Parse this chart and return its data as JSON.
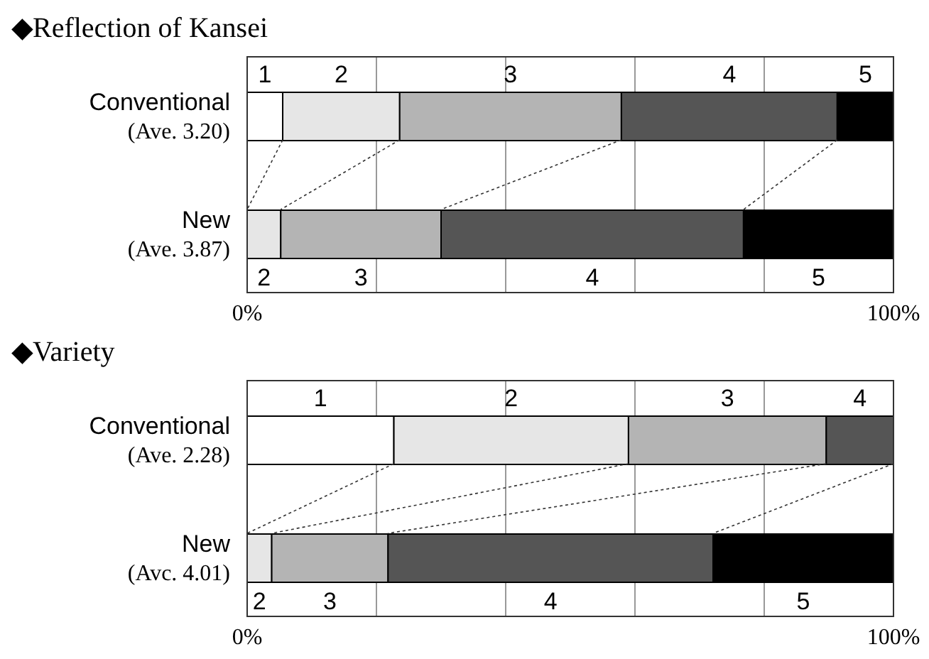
{
  "chart_data": [
    {
      "type": "bar",
      "orientation": "horizontal",
      "stacked": true,
      "title": "◆Reflection of Kansei",
      "categories": [
        "Conventional",
        "New"
      ],
      "annotations": [
        "(Ave.   3.20)",
        "(Ave.   3.87)"
      ],
      "series": [
        {
          "name": "1",
          "color": "#ffffff",
          "values": [
            5.5,
            0
          ]
        },
        {
          "name": "2",
          "color": "#e6e6e6",
          "values": [
            18.1,
            5.2
          ]
        },
        {
          "name": "3",
          "color": "#b4b4b4",
          "values": [
            34.3,
            24.8
          ]
        },
        {
          "name": "4",
          "color": "#555555",
          "values": [
            33.4,
            46.8
          ]
        },
        {
          "name": "5",
          "color": "#000000",
          "values": [
            8.7,
            23.2
          ]
        }
      ],
      "xlim": [
        0,
        100
      ],
      "xticks": [
        {
          "value": 0,
          "label": "0%"
        },
        {
          "value": 20,
          "label": null
        },
        {
          "value": 40,
          "label": null
        },
        {
          "value": 60,
          "label": null
        },
        {
          "value": 80,
          "label": null
        },
        {
          "value": 100,
          "label": "100%"
        }
      ],
      "grid": "x"
    },
    {
      "type": "bar",
      "orientation": "horizontal",
      "stacked": true,
      "title": "◆Variety",
      "categories": [
        "Conventional",
        "New"
      ],
      "annotations": [
        "(Ave.   2.28)",
        "(Avc.   4.01)"
      ],
      "series": [
        {
          "name": "1",
          "color": "#ffffff",
          "values": [
            22.7,
            0
          ]
        },
        {
          "name": "2",
          "color": "#e6e6e6",
          "values": [
            36.3,
            3.8
          ]
        },
        {
          "name": "3",
          "color": "#b4b4b4",
          "values": [
            30.6,
            18.0
          ]
        },
        {
          "name": "4",
          "color": "#555555",
          "values": [
            10.4,
            50.3
          ]
        },
        {
          "name": "5",
          "color": "#000000",
          "values": [
            0,
            27.9
          ]
        }
      ],
      "xlim": [
        0,
        100
      ],
      "xticks": [
        {
          "value": 0,
          "label": "0%"
        },
        {
          "value": 20,
          "label": null
        },
        {
          "value": 40,
          "label": null
        },
        {
          "value": 60,
          "label": null
        },
        {
          "value": 80,
          "label": null
        },
        {
          "value": 100,
          "label": "100%"
        }
      ],
      "grid": "x"
    }
  ]
}
